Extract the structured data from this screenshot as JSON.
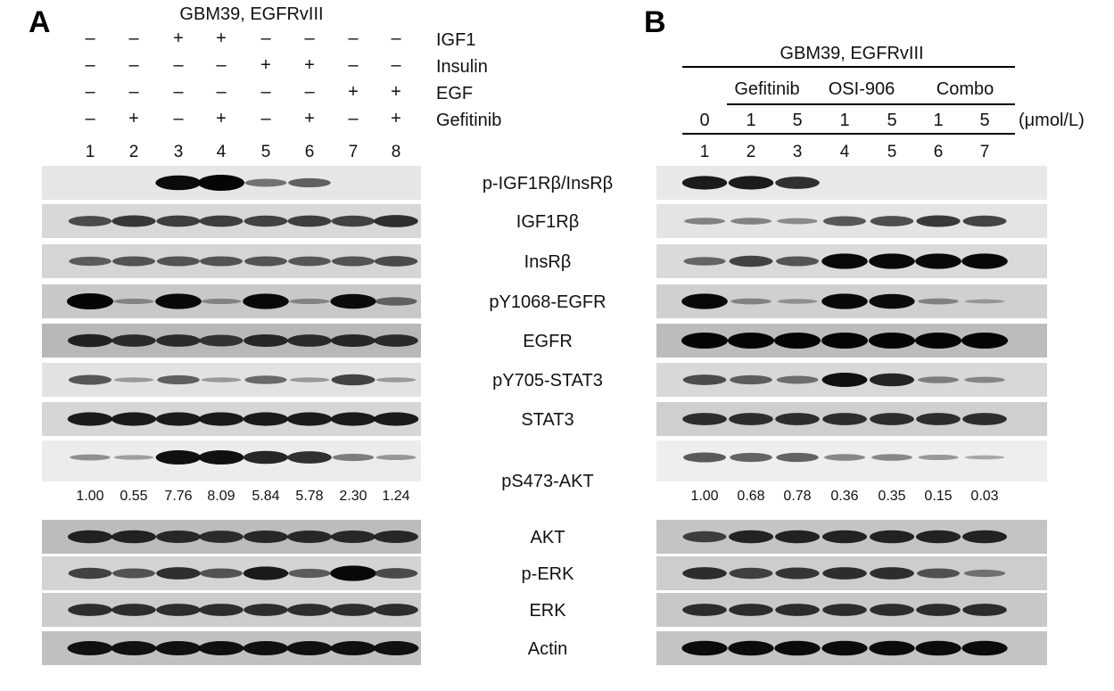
{
  "panelA": {
    "letter": "A",
    "cell_line": "GBM39, EGFRvIII",
    "lanes": [
      "1",
      "2",
      "3",
      "4",
      "5",
      "6",
      "7",
      "8"
    ],
    "treatments": [
      {
        "label": "IGF1",
        "signs": [
          "–",
          "–",
          "+",
          "+",
          "–",
          "–",
          "–",
          "–"
        ]
      },
      {
        "label": "Insulin",
        "signs": [
          "–",
          "–",
          "–",
          "–",
          "+",
          "+",
          "–",
          "–"
        ]
      },
      {
        "label": "EGF",
        "signs": [
          "–",
          "–",
          "–",
          "–",
          "–",
          "–",
          "+",
          "+"
        ]
      },
      {
        "label": "Gefitinib",
        "signs": [
          "–",
          "+",
          "–",
          "+",
          "–",
          "+",
          "–",
          "+"
        ]
      }
    ],
    "quantification": [
      "1.00",
      "0.55",
      "7.76",
      "8.09",
      "5.84",
      "5.78",
      "2.30",
      "1.24"
    ],
    "blots": [
      {
        "protein": "p-IGF1Rβ/InsRβ",
        "bg": "#e6e6e6",
        "intensities": [
          0,
          0,
          0.9,
          1.0,
          0.35,
          0.45,
          0,
          0
        ]
      },
      {
        "protein": "IGF1Rβ",
        "bg": "#d8d8d8",
        "intensities": [
          0.55,
          0.65,
          0.62,
          0.62,
          0.6,
          0.62,
          0.6,
          0.7
        ]
      },
      {
        "protein": "InsRβ",
        "bg": "#d5d5d5",
        "intensities": [
          0.45,
          0.5,
          0.5,
          0.5,
          0.5,
          0.48,
          0.5,
          0.55
        ]
      },
      {
        "protein": "pY1068-EGFR",
        "bg": "#c8c8c8",
        "intensities": [
          1.0,
          0.15,
          0.95,
          0.15,
          0.95,
          0.15,
          0.9,
          0.4
        ]
      },
      {
        "protein": "EGFR",
        "bg": "#b8b8b8",
        "intensities": [
          0.75,
          0.7,
          0.7,
          0.65,
          0.72,
          0.7,
          0.72,
          0.7
        ]
      },
      {
        "protein": "pY705-STAT3",
        "bg": "#e2e2e2",
        "intensities": [
          0.5,
          0.1,
          0.45,
          0.1,
          0.4,
          0.1,
          0.6,
          0.1
        ]
      },
      {
        "protein": "STAT3",
        "bg": "#d6d6d6",
        "intensities": [
          0.8,
          0.8,
          0.8,
          0.8,
          0.8,
          0.8,
          0.8,
          0.8
        ]
      },
      {
        "protein": "pS473-AKT",
        "bg": "#ececec",
        "intensities": [
          0.2,
          0.1,
          0.85,
          0.85,
          0.75,
          0.7,
          0.3,
          0.15
        ]
      },
      {
        "protein": "AKT",
        "bg": "#bcbcbc",
        "intensities": [
          0.75,
          0.75,
          0.72,
          0.7,
          0.72,
          0.72,
          0.72,
          0.72
        ]
      },
      {
        "protein": "p-ERK",
        "bg": "#d4d4d4",
        "intensities": [
          0.6,
          0.5,
          0.7,
          0.5,
          0.8,
          0.45,
          0.95,
          0.55
        ]
      },
      {
        "protein": "ERK",
        "bg": "#cccccc",
        "intensities": [
          0.7,
          0.7,
          0.7,
          0.7,
          0.7,
          0.7,
          0.7,
          0.7
        ]
      },
      {
        "protein": "Actin",
        "bg": "#c0c0c0",
        "intensities": [
          0.85,
          0.85,
          0.85,
          0.85,
          0.85,
          0.85,
          0.85,
          0.85
        ]
      }
    ]
  },
  "panelB": {
    "letter": "B",
    "cell_line": "GBM39, EGFRvIII",
    "groups": [
      "Gefitinib",
      "OSI-906",
      "Combo"
    ],
    "doses": [
      "0",
      "1",
      "5",
      "1",
      "5",
      "1",
      "5"
    ],
    "dose_unit": "(μmol/L)",
    "lanes": [
      "1",
      "2",
      "3",
      "4",
      "5",
      "6",
      "7"
    ],
    "quantification": [
      "1.00",
      "0.68",
      "0.78",
      "0.36",
      "0.35",
      "0.15",
      "0.03"
    ],
    "blots": [
      {
        "intensities": [
          0.8,
          0.8,
          0.7,
          0,
          0,
          0,
          0
        ]
      },
      {
        "intensities": [
          0.25,
          0.25,
          0.2,
          0.5,
          0.55,
          0.65,
          0.6
        ]
      },
      {
        "intensities": [
          0.4,
          0.6,
          0.5,
          0.95,
          0.95,
          0.95,
          0.95
        ]
      },
      {
        "intensities": [
          0.95,
          0.2,
          0.1,
          0.95,
          0.9,
          0.2,
          0.05
        ]
      },
      {
        "intensities": [
          1.0,
          1.0,
          1.0,
          1.0,
          1.0,
          1.0,
          1.0
        ]
      },
      {
        "intensities": [
          0.55,
          0.45,
          0.35,
          0.85,
          0.75,
          0.25,
          0.2
        ]
      },
      {
        "intensities": [
          0.7,
          0.7,
          0.7,
          0.7,
          0.7,
          0.7,
          0.7
        ]
      },
      {
        "intensities": [
          0.5,
          0.45,
          0.45,
          0.25,
          0.25,
          0.15,
          0.05
        ]
      },
      {
        "intensities": [
          0.6,
          0.75,
          0.75,
          0.75,
          0.75,
          0.75,
          0.75
        ]
      },
      {
        "intensities": [
          0.7,
          0.6,
          0.65,
          0.7,
          0.7,
          0.5,
          0.3
        ]
      },
      {
        "intensities": [
          0.7,
          0.7,
          0.7,
          0.7,
          0.7,
          0.7,
          0.7
        ]
      },
      {
        "intensities": [
          0.9,
          0.9,
          0.9,
          0.9,
          0.9,
          0.9,
          0.9
        ]
      }
    ]
  }
}
